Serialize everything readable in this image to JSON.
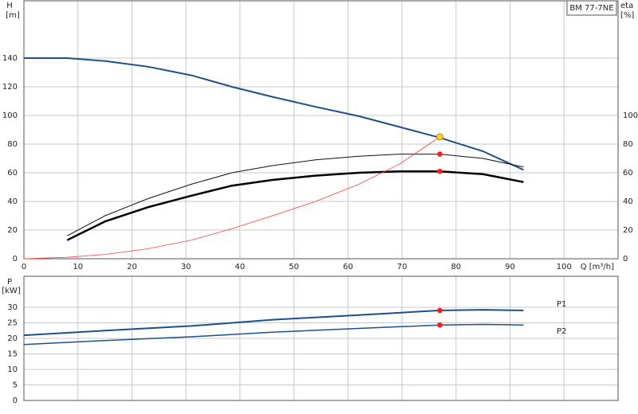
{
  "chart_data": [
    {
      "type": "line",
      "title": "BM 77-7NE",
      "xlabel": "Q [m³/h]",
      "ylabel": "H",
      "yunit": "[m]",
      "y2label": "eta",
      "y2unit": "[%]",
      "xlim": [
        0,
        110
      ],
      "xticks": [
        0,
        10,
        20,
        30,
        40,
        50,
        60,
        70,
        80,
        90,
        100
      ],
      "ylim": [
        0,
        180
      ],
      "yticks": [
        0,
        20,
        40,
        60,
        80,
        100,
        120,
        140
      ],
      "y2lim": [
        0,
        180
      ],
      "y2ticks": [
        0,
        20,
        40,
        60,
        80,
        100
      ],
      "grid": true,
      "series": [
        {
          "mode": "line",
          "color": "#1f4e8c",
          "width": 2,
          "x": [
            0,
            8,
            15,
            23,
            31,
            38.5,
            46,
            54,
            62,
            69.5,
            77,
            85,
            92.5
          ],
          "values": [
            140,
            140,
            138,
            134,
            128,
            120,
            113,
            106,
            99.5,
            92,
            84.5,
            75,
            62
          ]
        },
        {
          "mode": "line",
          "color": "#111111",
          "width": 1,
          "axis": "y2",
          "x": [
            8,
            15,
            23,
            31,
            38.5,
            46,
            54,
            62,
            69.5,
            77,
            85,
            92.5
          ],
          "values": [
            16,
            30,
            42,
            52,
            60,
            65,
            69,
            71.5,
            73,
            73,
            70,
            64
          ]
        },
        {
          "mode": "line",
          "color": "#000000",
          "width": 2.5,
          "axis": "y2",
          "x": [
            8,
            15,
            23,
            31,
            38.5,
            46,
            54,
            62,
            69.5,
            77,
            85,
            92.5
          ],
          "values": [
            13,
            26,
            36,
            44,
            51,
            55,
            58,
            60,
            61,
            61,
            59,
            53.5
          ]
        },
        {
          "mode": "line",
          "color": "#ff4040",
          "width": 0.8,
          "x": [
            0,
            8,
            15,
            23,
            31,
            38.5,
            46,
            54,
            62,
            69.5,
            77
          ],
          "values": [
            0,
            1,
            3,
            7,
            13,
            21,
            30,
            40,
            52,
            66,
            85
          ]
        },
        {
          "mode": "points",
          "color": "#ff1a1a",
          "axis": "y2",
          "x": [
            77,
            77
          ],
          "values": [
            73,
            61
          ]
        },
        {
          "mode": "points",
          "color": "#ffd21f",
          "x": [
            77
          ],
          "values": [
            85
          ]
        }
      ]
    },
    {
      "type": "line",
      "ylabel": "P",
      "yunit": "[kW]",
      "xlim": [
        0,
        110
      ],
      "xticks": [
        0,
        10,
        20,
        30,
        40,
        50,
        60,
        70,
        80,
        90,
        100
      ],
      "show_xtick_labels": false,
      "ylim": [
        0,
        40
      ],
      "yticks": [
        0,
        5,
        10,
        15,
        20,
        25,
        30
      ],
      "grid": true,
      "series": [
        {
          "mode": "line",
          "name": "P1",
          "color": "#1f4e8c",
          "width": 2,
          "x": [
            0,
            15,
            31,
            46,
            62,
            77,
            85,
            92.5
          ],
          "values": [
            21,
            22.5,
            24,
            26,
            27.5,
            29,
            29.2,
            29
          ]
        },
        {
          "mode": "line",
          "name": "P2",
          "color": "#1f4e8c",
          "width": 1.5,
          "x": [
            0,
            15,
            31,
            46,
            62,
            77,
            85,
            92.5
          ],
          "values": [
            18,
            19.3,
            20.5,
            22,
            23.2,
            24.3,
            24.5,
            24.3
          ]
        },
        {
          "mode": "points",
          "color": "#ff1a1a",
          "x": [
            77,
            77
          ],
          "values": [
            29,
            24.3
          ]
        }
      ]
    }
  ]
}
